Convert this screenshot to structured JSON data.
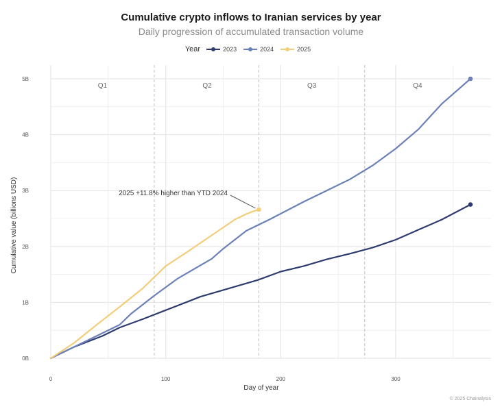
{
  "title": "Cumulative crypto inflows to Iranian services by year",
  "subtitle": "Daily progression of accumulated transaction volume",
  "legend": {
    "title": "Year",
    "items": [
      "2023",
      "2024",
      "2025"
    ]
  },
  "footer": "© 2025 Chainalysis",
  "colors": {
    "2023": "#2d3b6e",
    "2024": "#6b80b8",
    "2025": "#f2cd7a",
    "grid": "#e2e2e2",
    "quarter": "#c8c8c8"
  },
  "chart_data": {
    "type": "line",
    "title": "Cumulative crypto inflows to Iranian services by year",
    "subtitle": "Daily progression of accumulated transaction volume",
    "xlabel": "Day of year",
    "ylabel": "Cumulative value (billions USD)",
    "xlim": [
      0,
      365
    ],
    "ylim": [
      0,
      5
    ],
    "x_ticks": [
      0,
      100,
      200,
      300
    ],
    "x_tick_labels": [
      "0",
      "100",
      "200",
      "300"
    ],
    "y_ticks": [
      0,
      1,
      2,
      3,
      4,
      5
    ],
    "y_tick_labels": [
      "0B",
      "1B",
      "2B",
      "3B",
      "4B",
      "5B"
    ],
    "grid": true,
    "legend_position": "top",
    "quarters": [
      {
        "label": "Q1",
        "center_day": 45
      },
      {
        "label": "Q2",
        "center_day": 136
      },
      {
        "label": "Q3",
        "center_day": 227
      },
      {
        "label": "Q4",
        "center_day": 319
      }
    ],
    "quarter_boundaries": [
      90,
      181,
      273
    ],
    "annotation": {
      "text": "2025 +11.8% higher than YTD 2024",
      "point": [
        181,
        2.66
      ]
    },
    "series": [
      {
        "name": "2023",
        "x": [
          0,
          20,
          45,
          60,
          80,
          100,
          120,
          130,
          150,
          160,
          180,
          200,
          220,
          240,
          260,
          280,
          300,
          320,
          340,
          365
        ],
        "y": [
          0,
          0.2,
          0.4,
          0.55,
          0.7,
          0.86,
          1.02,
          1.1,
          1.22,
          1.28,
          1.4,
          1.55,
          1.65,
          1.77,
          1.87,
          1.98,
          2.12,
          2.3,
          2.48,
          2.75
        ]
      },
      {
        "name": "2024",
        "x": [
          0,
          20,
          40,
          60,
          70,
          80,
          90,
          110,
          140,
          150,
          170,
          190,
          220,
          240,
          260,
          280,
          300,
          320,
          340,
          365
        ],
        "y": [
          0,
          0.2,
          0.4,
          0.6,
          0.8,
          0.96,
          1.12,
          1.42,
          1.78,
          1.96,
          2.28,
          2.48,
          2.8,
          3.0,
          3.2,
          3.45,
          3.75,
          4.1,
          4.55,
          5.0
        ]
      },
      {
        "name": "2025",
        "x": [
          0,
          20,
          40,
          60,
          80,
          90,
          100,
          120,
          140,
          160,
          170,
          175,
          181
        ],
        "y": [
          0,
          0.27,
          0.6,
          0.92,
          1.25,
          1.45,
          1.65,
          1.92,
          2.2,
          2.48,
          2.58,
          2.62,
          2.66
        ]
      }
    ]
  }
}
